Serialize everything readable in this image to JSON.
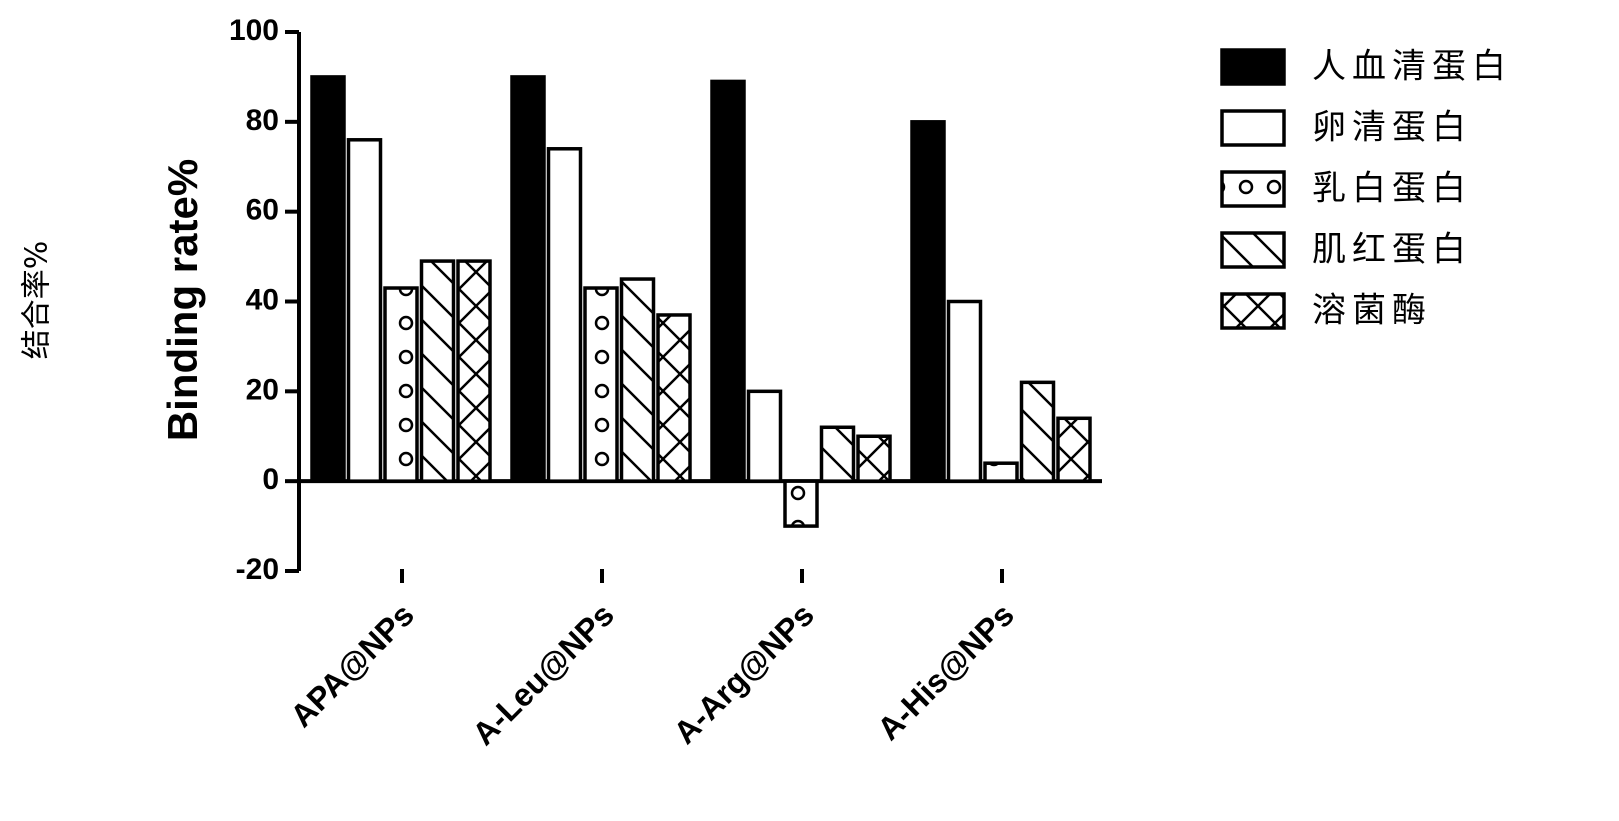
{
  "chart_data": {
    "type": "bar",
    "ylabel": "Binding rate%",
    "ylabel_secondary": "结合率%",
    "ylim": [
      -20,
      100
    ],
    "yticks": [
      -20,
      0,
      20,
      40,
      60,
      80,
      100
    ],
    "categories": [
      "APA@NPs",
      "A-Leu@NPs",
      "A-Arg@NPs",
      "A-His@NPs"
    ],
    "series": [
      {
        "name": "人血清蛋白",
        "pattern": "solid",
        "values": [
          90,
          90,
          89,
          80
        ]
      },
      {
        "name": "卵清蛋白",
        "pattern": "empty",
        "values": [
          76,
          74,
          20,
          40
        ]
      },
      {
        "name": "乳白蛋白",
        "pattern": "circles",
        "values": [
          43,
          43,
          -10,
          4
        ]
      },
      {
        "name": "肌红蛋白",
        "pattern": "diagonal",
        "values": [
          49,
          45,
          12,
          22
        ]
      },
      {
        "name": "溶菌酶",
        "pattern": "crosshatch",
        "values": [
          49,
          37,
          10,
          14
        ]
      }
    ],
    "legend_position": "top-right",
    "grid": false,
    "colors": {
      "bar_stroke": "#000000",
      "solid_fill": "#000000",
      "background": "#ffffff"
    }
  }
}
